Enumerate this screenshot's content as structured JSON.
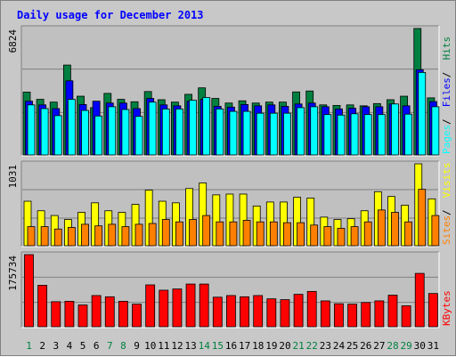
{
  "chart_data": [
    {
      "type": "bar",
      "title": "Daily usage for December 2013",
      "categories": [
        "1",
        "2",
        "3",
        "4",
        "5",
        "6",
        "7",
        "8",
        "9",
        "10",
        "11",
        "12",
        "13",
        "14",
        "15",
        "16",
        "17",
        "18",
        "19",
        "20",
        "21",
        "22",
        "23",
        "24",
        "25",
        "26",
        "27",
        "28",
        "29",
        "30",
        "31"
      ],
      "ymax_label": "6824",
      "ymax": 6824,
      "legend_right": [
        "Pages",
        "Files",
        "Hits"
      ],
      "series": [
        {
          "name": "Hits",
          "values": [
            3390,
            3000,
            2850,
            4850,
            3170,
            2550,
            3320,
            3000,
            2870,
            3420,
            2980,
            2850,
            3270,
            3620,
            3050,
            2800,
            2920,
            2800,
            2850,
            2850,
            3400,
            3450,
            2700,
            2670,
            2700,
            2650,
            2770,
            2980,
            3170,
            6824,
            3080
          ]
        },
        {
          "name": "Files",
          "values": [
            2900,
            2700,
            2500,
            4000,
            2720,
            2900,
            2800,
            2800,
            2500,
            3050,
            2700,
            2650,
            2900,
            3000,
            2620,
            2580,
            2720,
            2650,
            2700,
            2620,
            2750,
            2800,
            2600,
            2480,
            2520,
            2600,
            2600,
            2750,
            2650,
            4600,
            2880
          ]
        },
        {
          "name": "Pages",
          "values": [
            2700,
            2500,
            2120,
            3000,
            2400,
            2100,
            2600,
            2450,
            2080,
            2850,
            2480,
            2480,
            2950,
            3100,
            2480,
            2350,
            2350,
            2250,
            2250,
            2250,
            2550,
            2600,
            2180,
            2150,
            2220,
            2180,
            2180,
            2750,
            2200,
            4450,
            2600
          ]
        }
      ]
    },
    {
      "type": "bar",
      "ymax_label": "1031",
      "ymax": 1031,
      "legend_right": [
        "Sites",
        "Visits"
      ],
      "series": [
        {
          "name": "Visits",
          "values": [
            560,
            440,
            380,
            330,
            420,
            540,
            440,
            420,
            520,
            700,
            560,
            540,
            720,
            790,
            640,
            650,
            650,
            500,
            550,
            550,
            610,
            600,
            360,
            330,
            340,
            440,
            680,
            620,
            510,
            1031,
            590
          ]
        },
        {
          "name": "Sites",
          "values": [
            240,
            240,
            210,
            230,
            270,
            250,
            270,
            240,
            270,
            280,
            330,
            300,
            330,
            380,
            300,
            300,
            320,
            300,
            300,
            290,
            290,
            260,
            240,
            220,
            240,
            300,
            450,
            420,
            300,
            710,
            380
          ]
        }
      ]
    },
    {
      "type": "bar",
      "ymax_label": "175734",
      "ymax": 175734,
      "legend_right": [
        "KBytes"
      ],
      "series": [
        {
          "name": "KBytes",
          "values": [
            175734,
            101000,
            61000,
            62000,
            53000,
            76000,
            73000,
            62000,
            55000,
            102000,
            89000,
            92000,
            104000,
            104000,
            72000,
            76000,
            73000,
            76000,
            68000,
            66000,
            79000,
            86000,
            63000,
            56000,
            55000,
            59000,
            63000,
            77000,
            51000,
            130000,
            81000
          ]
        }
      ]
    }
  ],
  "colors": {
    "hits": "#008040",
    "files": "#0000ff",
    "pages": "#00ffff",
    "visits": "#ffff00",
    "sites": "#ff8000",
    "kbytes": "#ff0000",
    "title": "#0000ff",
    "weekend": "#008040",
    "weekday": "#000000",
    "plot_bg": "#c0c0c0",
    "grid": "#808080"
  },
  "weekend_days": [
    1,
    7,
    8,
    14,
    15,
    21,
    22,
    28,
    29
  ]
}
